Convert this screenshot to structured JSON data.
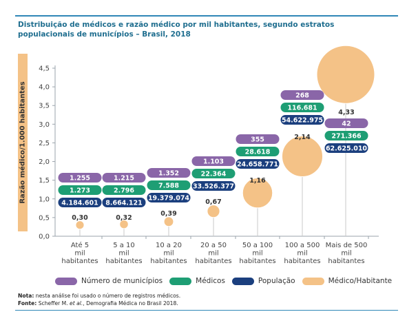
{
  "title": "Distribuição de médicos e razão médico por mil habitantes, segundo estratos populacionais de municípios – Brasil, 2018",
  "colors": {
    "municipios": "#8a66a8",
    "medicos": "#1e9e74",
    "populacao": "#1b3f7e",
    "ratio": "#f4c287",
    "accent": "#2e86b6"
  },
  "chart_data": {
    "type": "scatter",
    "title": "Distribuição de médicos e razão médico por mil habitantes, segundo estratos populacionais de municípios – Brasil, 2018",
    "ylabel": "Razão médico/1.000 habitantes",
    "ylim": [
      0,
      4.5
    ],
    "yticks": [
      "0,0",
      "0,5",
      "1,0",
      "1,5",
      "2,0",
      "2,5",
      "3,0",
      "3,5",
      "4,0",
      "4,5"
    ],
    "grid": false,
    "legend_position": "bottom",
    "categories": [
      [
        "Até 5",
        "mil",
        "habitantes"
      ],
      [
        "5 a 10",
        "mil",
        "habitantes"
      ],
      [
        "10 a 20",
        "mil",
        "habitantes"
      ],
      [
        "20 a 50",
        "mil",
        "habitantes"
      ],
      [
        "50 a 100",
        "mil",
        "habitantes"
      ],
      [
        "100 a 500",
        "mil",
        "habitantes"
      ],
      [
        "Mais de 500",
        "mil",
        "habitantes"
      ]
    ],
    "ratio_values": [
      0.3,
      0.32,
      0.39,
      0.67,
      1.16,
      2.14,
      4.33
    ],
    "ratio_labels": [
      "0,30",
      "0,32",
      "0,39",
      "0,67",
      "1,16",
      "2,14",
      "4,33"
    ],
    "series": [
      {
        "name": "Número de municípios",
        "labels": [
          "1.255",
          "1.215",
          "1.352",
          "1.103",
          "355",
          "268",
          "42"
        ],
        "values": [
          1255,
          1215,
          1352,
          1103,
          355,
          268,
          42
        ]
      },
      {
        "name": "Médicos",
        "labels": [
          "1.273",
          "2.796",
          "7.588",
          "22.364",
          "28.618",
          "116.681",
          "271.366"
        ],
        "values": [
          1273,
          2796,
          7588,
          22364,
          28618,
          116681,
          271366
        ]
      },
      {
        "name": "População",
        "labels": [
          "4.184.601",
          "8.664.121",
          "19.379.074",
          "33.526.377",
          "24.658.771",
          "54.622.975",
          "62.625.010"
        ],
        "values": [
          4184601,
          8664121,
          19379074,
          33526377,
          24658771,
          54622975,
          62625010
        ]
      }
    ],
    "legend": [
      "Número de municípios",
      "Médicos",
      "População",
      "Médico/Habitante"
    ]
  },
  "footnote": {
    "note_label": "Nota:",
    "note_text": " nesta análise foi usado o número de registros médicos.",
    "source_label": "Fonte:",
    "source_text_1": " Scheffer M. ",
    "source_etal": "et al.",
    "source_text_2": ", Demografia Médica no Brasil 2018."
  }
}
